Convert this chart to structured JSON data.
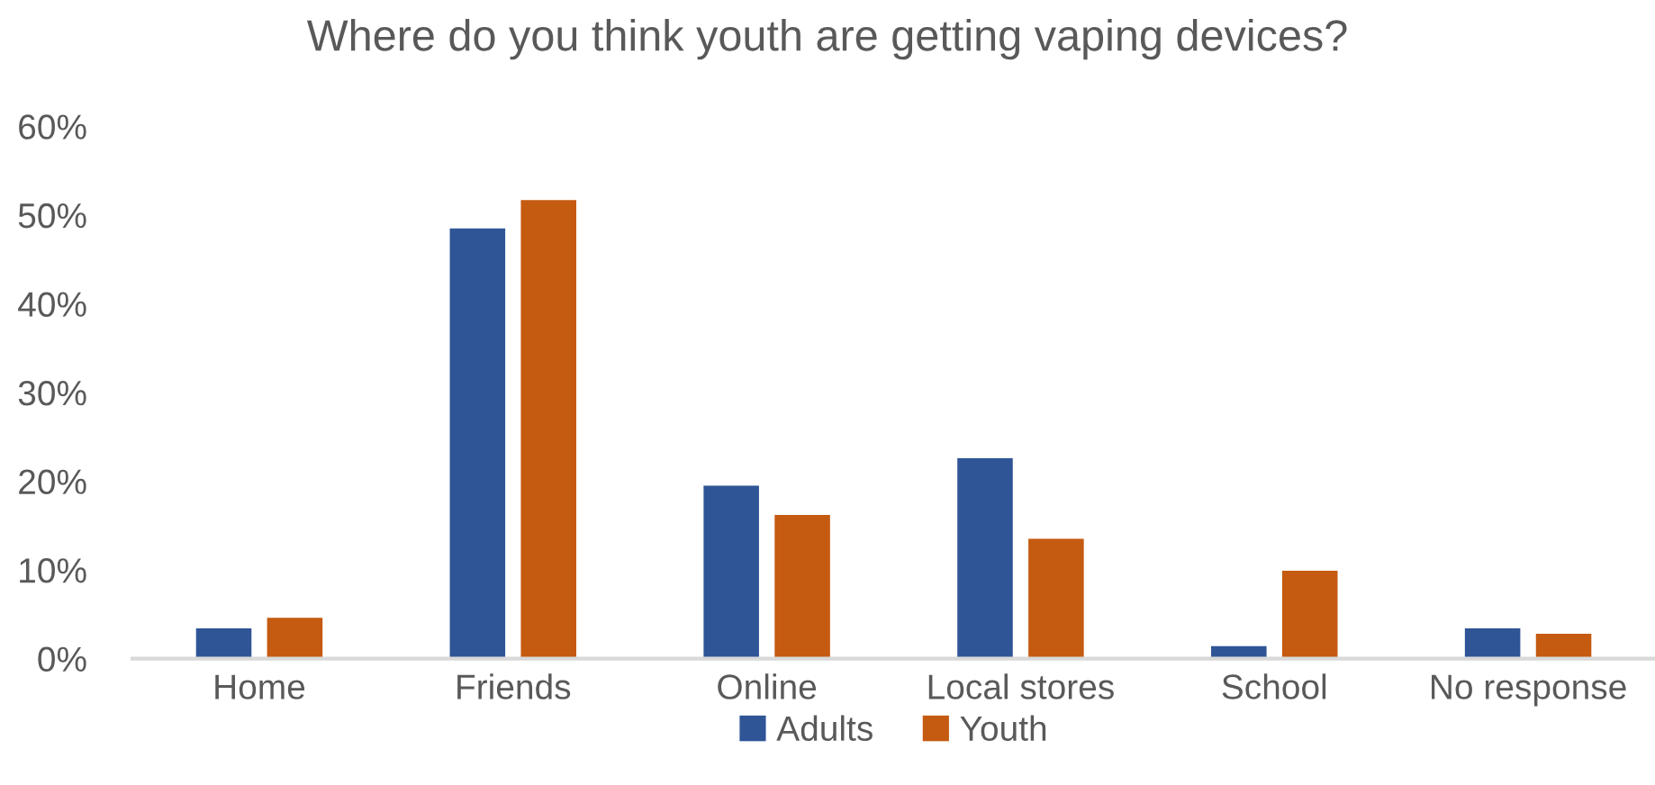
{
  "chart_data": {
    "type": "bar",
    "title": "Where do you think youth are getting vaping devices?",
    "categories": [
      "Home",
      "Friends",
      "Online",
      "Local stores",
      "School",
      "No response"
    ],
    "series": [
      {
        "name": "Adults",
        "color": "#2f5597",
        "values": [
          3.4,
          48.5,
          19.5,
          22.6,
          1.4,
          3.4
        ]
      },
      {
        "name": "Youth",
        "color": "#c55a11",
        "values": [
          4.6,
          51.7,
          16.2,
          13.5,
          9.9,
          2.8
        ]
      }
    ],
    "ylim": [
      0,
      60
    ],
    "yticks": [
      {
        "value": 0,
        "label": "0%"
      },
      {
        "value": 10,
        "label": "10%"
      },
      {
        "value": 20,
        "label": "20%"
      },
      {
        "value": 30,
        "label": "30%"
      },
      {
        "value": 40,
        "label": "40%"
      },
      {
        "value": 50,
        "label": "50%"
      },
      {
        "value": 60,
        "label": "60%"
      }
    ],
    "legend": "bottom"
  }
}
